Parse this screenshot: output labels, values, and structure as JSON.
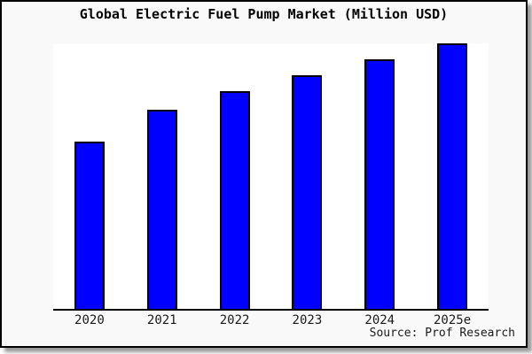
{
  "page": {
    "background": "#ffffff"
  },
  "card": {
    "background": "#f9f9f9",
    "border_color": "#000000",
    "shadow_color": "#999999"
  },
  "chart_data": {
    "type": "bar",
    "title": "Global Electric Fuel Pump Market (Million USD)",
    "categories": [
      "2020",
      "2021",
      "2022",
      "2023",
      "2024",
      "2025e"
    ],
    "values": [
      63,
      75,
      82,
      88,
      94,
      100
    ],
    "value_scale": "percent of tallest bar (chart shows no y-axis tick labels; values estimated from bar pixel heights)",
    "xlabel": "",
    "ylabel": "",
    "ylim": [
      0,
      100
    ],
    "gridlines": false,
    "legend": false,
    "y_axis_visible": false,
    "bar_color": "#0000ff",
    "bar_border_color": "#000000",
    "plot_background": "#ffffff",
    "axis_line_color": "#000000"
  },
  "footer": {
    "source": "Source: Prof Research"
  }
}
